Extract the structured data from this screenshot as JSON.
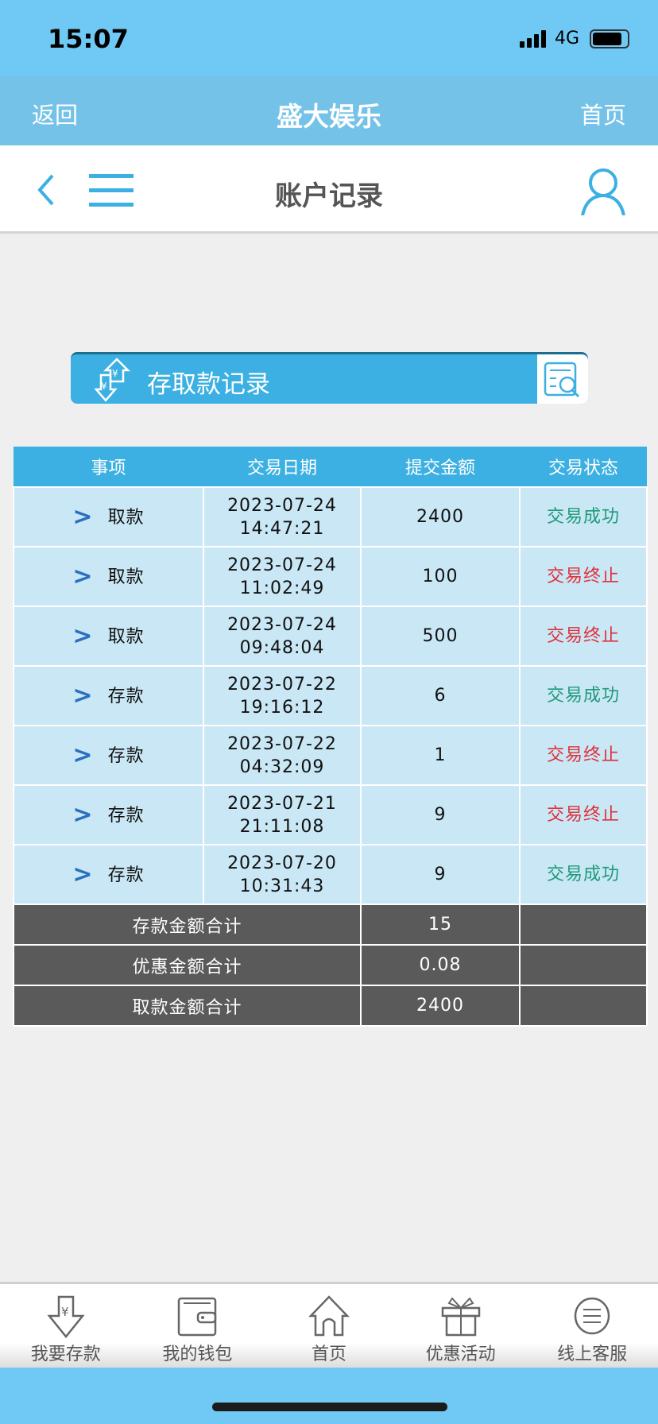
{
  "status_bar": {
    "time": "15:07",
    "network": "4G",
    "battery_level": 0.85
  },
  "app_bar": {
    "back": "返回",
    "title": "盛大娱乐",
    "home": "首页"
  },
  "sub_header": {
    "title": "账户记录"
  },
  "banner": {
    "label": "存取款记录"
  },
  "table": {
    "headers": [
      "事项",
      "交易日期",
      "提交金额",
      "交易状态"
    ],
    "rows": [
      {
        "type": "取款",
        "date": "2023-07-24",
        "time": "14:47:21",
        "amount": "2400",
        "status": "交易成功",
        "ok": true
      },
      {
        "type": "取款",
        "date": "2023-07-24",
        "time": "11:02:49",
        "amount": "100",
        "status": "交易终止",
        "ok": false
      },
      {
        "type": "取款",
        "date": "2023-07-24",
        "time": "09:48:04",
        "amount": "500",
        "status": "交易终止",
        "ok": false
      },
      {
        "type": "存款",
        "date": "2023-07-22",
        "time": "19:16:12",
        "amount": "6",
        "status": "交易成功",
        "ok": true
      },
      {
        "type": "存款",
        "date": "2023-07-22",
        "time": "04:32:09",
        "amount": "1",
        "status": "交易终止",
        "ok": false
      },
      {
        "type": "存款",
        "date": "2023-07-21",
        "time": "21:11:08",
        "amount": "9",
        "status": "交易终止",
        "ok": false
      },
      {
        "type": "存款",
        "date": "2023-07-20",
        "time": "10:31:43",
        "amount": "9",
        "status": "交易成功",
        "ok": true
      }
    ],
    "summary": [
      {
        "label": "存款金额合计",
        "value": "15"
      },
      {
        "label": "优惠金额合计",
        "value": "0.08"
      },
      {
        "label": "取款金额合计",
        "value": "2400"
      }
    ]
  },
  "bottom_nav": [
    {
      "label": "我要存款",
      "icon": "deposit-icon"
    },
    {
      "label": "我的钱包",
      "icon": "wallet-icon"
    },
    {
      "label": "首页",
      "icon": "home-icon"
    },
    {
      "label": "优惠活动",
      "icon": "gift-icon"
    },
    {
      "label": "线上客服",
      "icon": "support-icon"
    }
  ],
  "colors": {
    "accent": "#3cb0e2",
    "success": "#1e9a7a",
    "fail": "#e0303a",
    "row_bg": "#c9e7f4",
    "summary_bg": "#5a5a5a"
  }
}
